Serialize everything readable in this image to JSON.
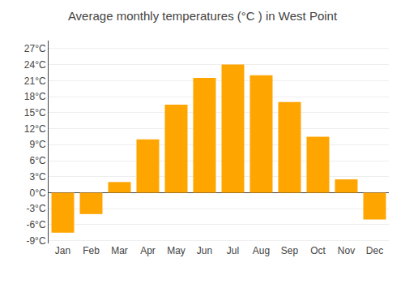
{
  "chart_data": {
    "type": "bar",
    "title": "Average monthly temperatures (°C ) in West Point",
    "categories": [
      "Jan",
      "Feb",
      "Mar",
      "Apr",
      "May",
      "Jun",
      "Jul",
      "Aug",
      "Sep",
      "Oct",
      "Nov",
      "Dec"
    ],
    "values": [
      -7.5,
      -4.0,
      2.0,
      10.0,
      16.5,
      21.5,
      24.0,
      22.0,
      17.0,
      10.5,
      2.5,
      -5.0
    ],
    "color": "#FFA500",
    "ylim": [
      -9.5,
      28.5
    ],
    "yticks": [
      {
        "value": -9,
        "label": "-9°C"
      },
      {
        "value": -6,
        "label": "-6°C"
      },
      {
        "value": -3,
        "label": "-3°C"
      },
      {
        "value": 0,
        "label": "0°C"
      },
      {
        "value": 3,
        "label": "3°C"
      },
      {
        "value": 6,
        "label": "6°C"
      },
      {
        "value": 9,
        "label": "9°C"
      },
      {
        "value": 12,
        "label": "12°C"
      },
      {
        "value": 15,
        "label": "15°C"
      },
      {
        "value": 18,
        "label": "18°C"
      },
      {
        "value": 21,
        "label": "21°C"
      },
      {
        "value": 24,
        "label": "24°C"
      },
      {
        "value": 27,
        "label": "27°C"
      }
    ],
    "grid": true
  }
}
